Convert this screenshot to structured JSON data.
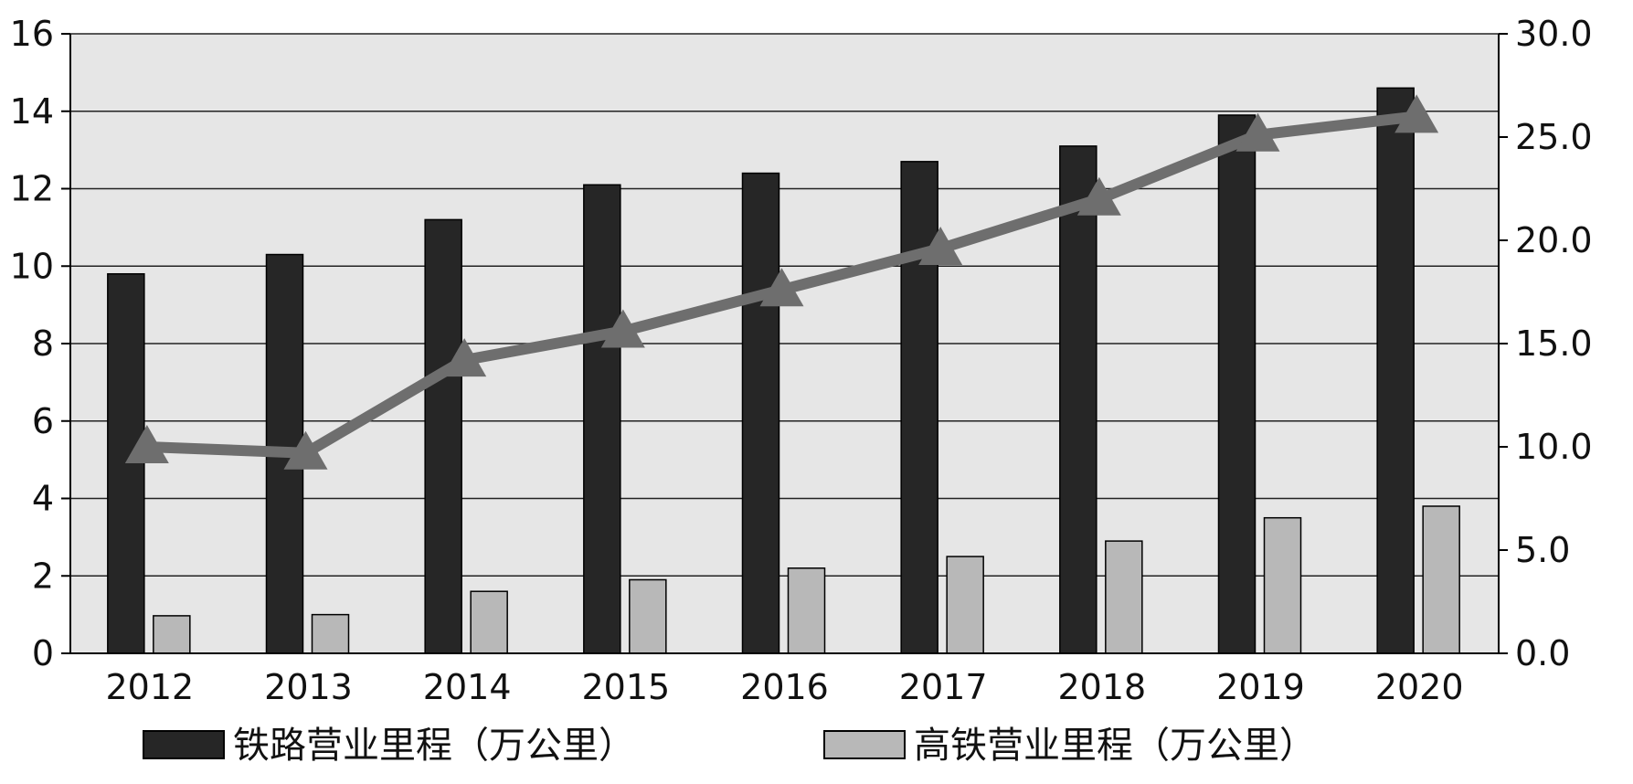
{
  "chart_data": {
    "type": "bar",
    "categories": [
      "2012",
      "2013",
      "2014",
      "2015",
      "2016",
      "2017",
      "2018",
      "2019",
      "2020"
    ],
    "series": [
      {
        "name": "铁路营业里程（万公里）",
        "type": "bar",
        "axis": "left",
        "color": "#262626",
        "values": [
          9.8,
          10.3,
          11.2,
          12.1,
          12.4,
          12.7,
          13.1,
          13.9,
          14.6
        ]
      },
      {
        "name": "高铁营业里程（万公里）",
        "type": "bar",
        "axis": "left",
        "color": "#b8b8b8",
        "values": [
          0.97,
          1.0,
          1.6,
          1.9,
          2.2,
          2.5,
          2.9,
          3.5,
          3.8
        ]
      },
      {
        "name": "",
        "type": "line",
        "marker": "triangle",
        "axis": "right",
        "color": "#6e6e6e",
        "values": [
          10.0,
          9.7,
          14.2,
          15.6,
          17.6,
          19.6,
          22.0,
          25.1,
          26.0
        ]
      }
    ],
    "ylim": [
      0,
      16
    ],
    "y_ticks": [
      "0",
      "2",
      "4",
      "6",
      "8",
      "10",
      "12",
      "14",
      "16"
    ],
    "y2lim": [
      0,
      30
    ],
    "y2_ticks": [
      "0.0",
      "5.0",
      "10.0",
      "15.0",
      "20.0",
      "25.0",
      "30.0"
    ],
    "grid": true,
    "legend_position": "bottom",
    "plot_background": "#e6e6e6"
  }
}
